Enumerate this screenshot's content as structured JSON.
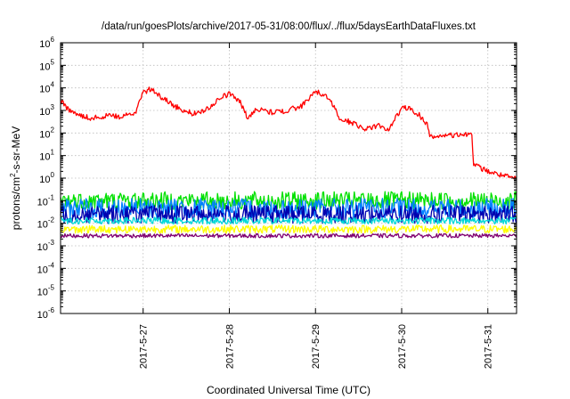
{
  "chart_data": {
    "type": "line",
    "title": "/data/run/goesPlots/archive/2017-05-31/08:00/flux/../flux/5daysEarthDataFluxes.txt",
    "xlabel": "Coordinated Universal Time (UTC)",
    "ylabel": {
      "prefix": "protons/cm",
      "sup": "2",
      "suffix": "-s-sr-MeV"
    },
    "y_scale": "log",
    "ylim": [
      1e-06,
      1000000.0
    ],
    "y_ticks": [
      {
        "base": "10",
        "exp": "-6",
        "value": -6
      },
      {
        "base": "10",
        "exp": "-5",
        "value": -5
      },
      {
        "base": "10",
        "exp": "-4",
        "value": -4
      },
      {
        "base": "10",
        "exp": "-3",
        "value": -3
      },
      {
        "base": "10",
        "exp": "-2",
        "value": -2
      },
      {
        "base": "10",
        "exp": "-1",
        "value": -1
      },
      {
        "base": "10",
        "exp": "0",
        "value": 0
      },
      {
        "base": "10",
        "exp": "1",
        "value": 1
      },
      {
        "base": "10",
        "exp": "2",
        "value": 2
      },
      {
        "base": "10",
        "exp": "3",
        "value": 3
      },
      {
        "base": "10",
        "exp": "4",
        "value": 4
      },
      {
        "base": "10",
        "exp": "5",
        "value": 5
      },
      {
        "base": "10",
        "exp": "6",
        "value": 6
      }
    ],
    "xlim": [
      "2017-05-26T01:00",
      "2017-05-31T08:00"
    ],
    "x_ticks": [
      {
        "label": "2017-5-27",
        "value": "2017-05-27T00:00"
      },
      {
        "label": "2017-5-28",
        "value": "2017-05-28T00:00"
      },
      {
        "label": "2017-5-29",
        "value": "2017-05-29T00:00"
      },
      {
        "label": "2017-5-30",
        "value": "2017-05-30T00:00"
      },
      {
        "label": "2017-5-31",
        "value": "2017-05-31T00:00"
      }
    ],
    "grid": true,
    "series": [
      {
        "color": "#ff0000",
        "noise": 0.12,
        "points": [
          [
            "2017-05-26T01:00",
            3000
          ],
          [
            "2017-05-26T03:00",
            1200
          ],
          [
            "2017-05-26T06:00",
            600
          ],
          [
            "2017-05-26T10:00",
            450
          ],
          [
            "2017-05-26T14:00",
            600
          ],
          [
            "2017-05-26T18:00",
            500
          ],
          [
            "2017-05-26T22:00",
            900
          ],
          [
            "2017-05-27T00:00",
            6000
          ],
          [
            "2017-05-27T02:00",
            9000
          ],
          [
            "2017-05-27T05:00",
            4000
          ],
          [
            "2017-05-27T10:00",
            1200
          ],
          [
            "2017-05-27T14:00",
            700
          ],
          [
            "2017-05-27T18:00",
            1200
          ],
          [
            "2017-05-27T22:00",
            4000
          ],
          [
            "2017-05-28T00:00",
            5500
          ],
          [
            "2017-05-28T03:00",
            2500
          ],
          [
            "2017-05-28T05:00",
            500
          ],
          [
            "2017-05-28T08:00",
            1200
          ],
          [
            "2017-05-28T12:00",
            800
          ],
          [
            "2017-05-28T16:00",
            1000
          ],
          [
            "2017-05-28T20:00",
            1500
          ],
          [
            "2017-05-28T23:00",
            5000
          ],
          [
            "2017-05-29T01:00",
            6500
          ],
          [
            "2017-05-29T04:00",
            3000
          ],
          [
            "2017-05-29T07:00",
            400
          ],
          [
            "2017-05-29T10:00",
            300
          ],
          [
            "2017-05-29T14:00",
            150
          ],
          [
            "2017-05-29T18:00",
            220
          ],
          [
            "2017-05-29T20:00",
            120
          ],
          [
            "2017-05-29T22:00",
            400
          ],
          [
            "2017-05-30T00:00",
            1200
          ],
          [
            "2017-05-30T02:00",
            1300
          ],
          [
            "2017-05-30T05:00",
            600
          ],
          [
            "2017-05-30T07:00",
            250
          ],
          [
            "2017-05-30T08:00",
            70
          ],
          [
            "2017-05-30T12:00",
            75
          ],
          [
            "2017-05-30T16:00",
            80
          ],
          [
            "2017-05-30T19:00",
            90
          ],
          [
            "2017-05-30T19:30",
            150
          ],
          [
            "2017-05-30T20:00",
            4
          ],
          [
            "2017-05-31T00:00",
            2
          ],
          [
            "2017-05-31T04:00",
            1.3
          ],
          [
            "2017-05-31T08:00",
            0.9
          ]
        ]
      },
      {
        "color": "#00e000",
        "noise": 0.4,
        "points": [
          [
            "2017-05-26T01:00",
            0.1
          ],
          [
            "2017-05-31T08:00",
            0.1
          ]
        ]
      },
      {
        "color": "#0080ff",
        "noise": 0.45,
        "points": [
          [
            "2017-05-26T01:00",
            0.045
          ],
          [
            "2017-05-31T08:00",
            0.045
          ]
        ]
      },
      {
        "color": "#0000b0",
        "noise": 0.4,
        "points": [
          [
            "2017-05-26T01:00",
            0.025
          ],
          [
            "2017-05-31T08:00",
            0.025
          ]
        ]
      },
      {
        "color": "#00d8d8",
        "noise": 0.15,
        "points": [
          [
            "2017-05-26T01:00",
            0.013
          ],
          [
            "2017-05-31T08:00",
            0.013
          ]
        ]
      },
      {
        "color": "#ffff00",
        "noise": 0.18,
        "points": [
          [
            "2017-05-26T01:00",
            0.0055
          ],
          [
            "2017-05-31T08:00",
            0.0055
          ]
        ]
      },
      {
        "color": "#800070",
        "noise": 0.09,
        "points": [
          [
            "2017-05-26T01:00",
            0.0028
          ],
          [
            "2017-05-31T08:00",
            0.0028
          ]
        ]
      }
    ]
  }
}
